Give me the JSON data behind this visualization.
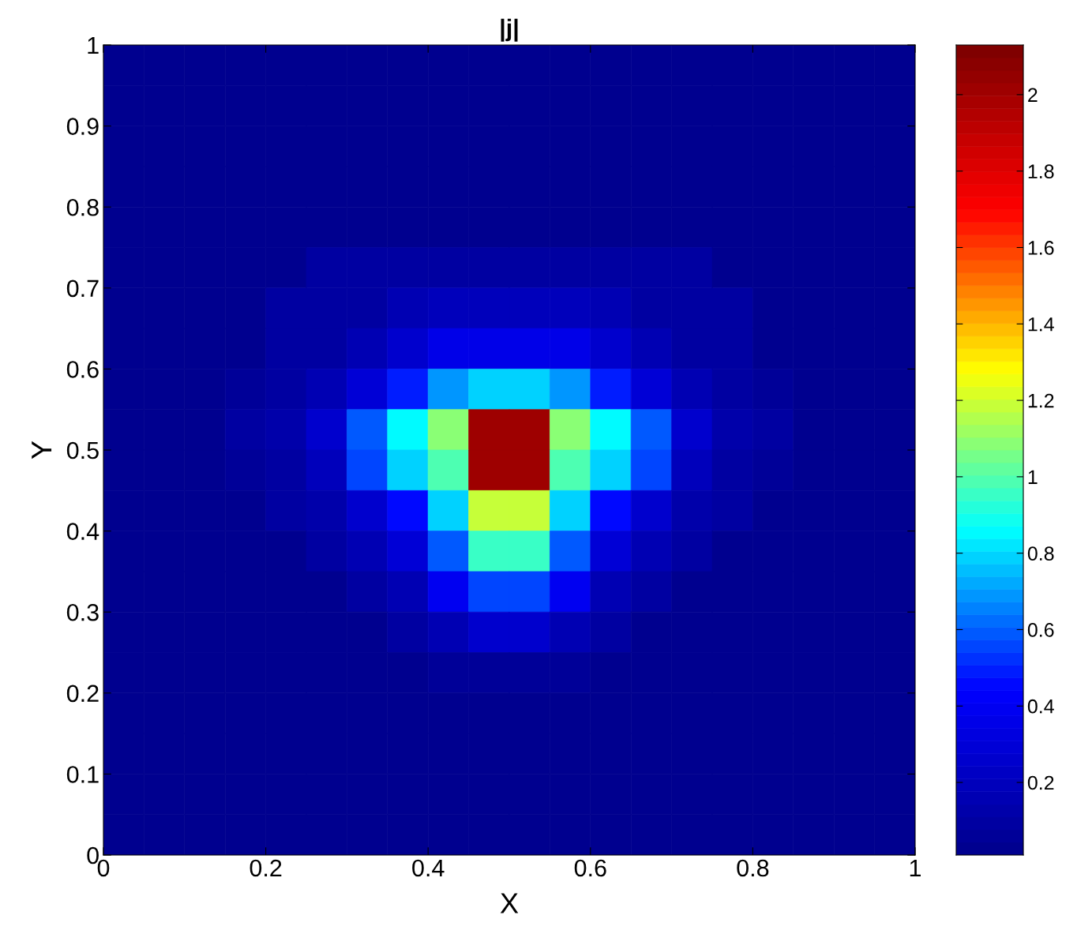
{
  "chart_data": {
    "type": "heatmap",
    "title": "|j|",
    "xlabel": "X",
    "ylabel": "Y",
    "x": [
      0.025,
      0.075,
      0.125,
      0.175,
      0.225,
      0.275,
      0.325,
      0.375,
      0.425,
      0.475,
      0.525,
      0.575,
      0.625,
      0.675,
      0.725,
      0.775,
      0.825,
      0.875,
      0.925,
      0.975
    ],
    "y": [
      0.975,
      0.925,
      0.875,
      0.825,
      0.775,
      0.725,
      0.675,
      0.625,
      0.575,
      0.525,
      0.475,
      0.425,
      0.375,
      0.325,
      0.275,
      0.225,
      0.175,
      0.125,
      0.075,
      0.025
    ],
    "cells": [
      [
        0.02,
        0.02,
        0.02,
        0.02,
        0.02,
        0.02,
        0.02,
        0.02,
        0.02,
        0.02,
        0.02,
        0.02,
        0.02,
        0.02,
        0.02,
        0.02,
        0.02,
        0.02,
        0.02,
        0.02
      ],
      [
        0.02,
        0.02,
        0.02,
        0.02,
        0.02,
        0.02,
        0.02,
        0.02,
        0.02,
        0.02,
        0.02,
        0.02,
        0.02,
        0.02,
        0.02,
        0.02,
        0.02,
        0.02,
        0.02,
        0.02
      ],
      [
        0.02,
        0.02,
        0.02,
        0.02,
        0.02,
        0.02,
        0.02,
        0.02,
        0.02,
        0.02,
        0.02,
        0.02,
        0.02,
        0.02,
        0.02,
        0.02,
        0.02,
        0.02,
        0.02,
        0.02
      ],
      [
        0.02,
        0.02,
        0.02,
        0.02,
        0.02,
        0.02,
        0.02,
        0.02,
        0.02,
        0.02,
        0.02,
        0.02,
        0.02,
        0.02,
        0.02,
        0.02,
        0.02,
        0.02,
        0.02,
        0.02
      ],
      [
        0.02,
        0.02,
        0.02,
        0.02,
        0.02,
        0.02,
        0.02,
        0.02,
        0.02,
        0.02,
        0.02,
        0.02,
        0.02,
        0.02,
        0.02,
        0.02,
        0.02,
        0.02,
        0.02,
        0.02
      ],
      [
        0.02,
        0.02,
        0.02,
        0.02,
        0.02,
        0.08,
        0.08,
        0.08,
        0.08,
        0.08,
        0.08,
        0.08,
        0.08,
        0.08,
        0.08,
        0.02,
        0.02,
        0.02,
        0.02,
        0.02
      ],
      [
        0.02,
        0.02,
        0.02,
        0.02,
        0.08,
        0.08,
        0.08,
        0.15,
        0.2,
        0.2,
        0.2,
        0.2,
        0.15,
        0.08,
        0.08,
        0.08,
        0.02,
        0.02,
        0.02,
        0.02
      ],
      [
        0.02,
        0.02,
        0.02,
        0.02,
        0.08,
        0.08,
        0.15,
        0.25,
        0.35,
        0.35,
        0.35,
        0.35,
        0.25,
        0.15,
        0.08,
        0.08,
        0.02,
        0.02,
        0.02,
        0.02
      ],
      [
        0.02,
        0.02,
        0.02,
        0.05,
        0.08,
        0.15,
        0.3,
        0.5,
        0.7,
        0.8,
        0.8,
        0.7,
        0.5,
        0.3,
        0.15,
        0.08,
        0.05,
        0.02,
        0.02,
        0.02
      ],
      [
        0.02,
        0.02,
        0.02,
        0.08,
        0.12,
        0.25,
        0.6,
        0.85,
        1.1,
        2,
        2,
        1.1,
        0.85,
        0.6,
        0.25,
        0.12,
        0.08,
        0.02,
        0.02,
        0.02
      ],
      [
        0.02,
        0.02,
        0.02,
        0.06,
        0.1,
        0.2,
        0.55,
        0.8,
        1,
        2,
        2,
        1,
        0.8,
        0.55,
        0.2,
        0.1,
        0.06,
        0.02,
        0.02,
        0.02
      ],
      [
        0.02,
        0.02,
        0.02,
        0.02,
        0.08,
        0.12,
        0.25,
        0.45,
        0.8,
        1.2,
        1.2,
        0.8,
        0.45,
        0.25,
        0.12,
        0.08,
        0.02,
        0.02,
        0.02,
        0.02
      ],
      [
        0.02,
        0.02,
        0.02,
        0.02,
        0.02,
        0.08,
        0.15,
        0.3,
        0.6,
        0.95,
        0.95,
        0.6,
        0.3,
        0.15,
        0.08,
        0.02,
        0.02,
        0.02,
        0.02,
        0.02
      ],
      [
        0.02,
        0.02,
        0.02,
        0.02,
        0.02,
        0.02,
        0.08,
        0.15,
        0.4,
        0.55,
        0.55,
        0.4,
        0.15,
        0.08,
        0.02,
        0.02,
        0.02,
        0.02,
        0.02,
        0.02
      ],
      [
        0.02,
        0.02,
        0.02,
        0.02,
        0.02,
        0.02,
        0.02,
        0.08,
        0.15,
        0.25,
        0.25,
        0.15,
        0.08,
        0.02,
        0.02,
        0.02,
        0.02,
        0.02,
        0.02,
        0.02
      ],
      [
        0.02,
        0.02,
        0.02,
        0.02,
        0.02,
        0.02,
        0.02,
        0.02,
        0.05,
        0.07,
        0.07,
        0.05,
        0.02,
        0.02,
        0.02,
        0.02,
        0.02,
        0.02,
        0.02,
        0.02
      ],
      [
        0.02,
        0.02,
        0.02,
        0.02,
        0.02,
        0.02,
        0.02,
        0.02,
        0.02,
        0.02,
        0.02,
        0.02,
        0.02,
        0.02,
        0.02,
        0.02,
        0.02,
        0.02,
        0.02,
        0.02
      ],
      [
        0.02,
        0.02,
        0.02,
        0.02,
        0.02,
        0.02,
        0.02,
        0.02,
        0.02,
        0.02,
        0.02,
        0.02,
        0.02,
        0.02,
        0.02,
        0.02,
        0.02,
        0.02,
        0.02,
        0.02
      ],
      [
        0.02,
        0.02,
        0.02,
        0.02,
        0.02,
        0.02,
        0.02,
        0.02,
        0.02,
        0.02,
        0.02,
        0.02,
        0.02,
        0.02,
        0.02,
        0.02,
        0.02,
        0.02,
        0.02,
        0.02
      ],
      [
        0.02,
        0.02,
        0.02,
        0.02,
        0.02,
        0.02,
        0.02,
        0.02,
        0.02,
        0.02,
        0.02,
        0.02,
        0.02,
        0.02,
        0.02,
        0.02,
        0.02,
        0.02,
        0.02,
        0.02
      ]
    ],
    "colors": [
      "#00008f",
      "#0000ff",
      "#00ffff",
      "#ffff00",
      "#ff0000",
      "#800000"
    ],
    "clim": [
      0.01,
      2.13
    ],
    "cticks": [
      0.2,
      0.4,
      0.6,
      0.8,
      1,
      1.2,
      1.4,
      1.6,
      1.8,
      2
    ],
    "xlim": [
      0,
      1
    ],
    "ylim": [
      0,
      1
    ],
    "xticks": [
      0,
      0.2,
      0.4,
      0.6,
      0.8,
      1
    ],
    "yticks": [
      0,
      0.1,
      0.2,
      0.3,
      0.4,
      0.5,
      0.6,
      0.7,
      0.8,
      0.9,
      1
    ],
    "grid": false
  }
}
